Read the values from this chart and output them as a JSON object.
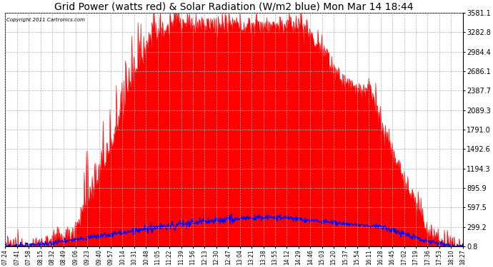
{
  "title": "Grid Power (watts red) & Solar Radiation (W/m2 blue) Mon Mar 14 18:44",
  "copyright": "Copyright 2011 Cartronics.com",
  "yticks": [
    0.8,
    299.2,
    597.5,
    895.9,
    1194.3,
    1492.6,
    1791.0,
    2089.3,
    2387.7,
    2686.1,
    2984.4,
    3282.8,
    3581.1
  ],
  "xtick_labels": [
    "07:24",
    "07:41",
    "07:58",
    "08:15",
    "08:32",
    "08:49",
    "09:06",
    "09:23",
    "09:40",
    "09:57",
    "10:14",
    "10:31",
    "10:48",
    "11:05",
    "11:22",
    "11:39",
    "11:56",
    "12:13",
    "12:30",
    "12:47",
    "13:04",
    "13:21",
    "13:38",
    "13:55",
    "14:12",
    "14:29",
    "14:46",
    "15:03",
    "15:20",
    "15:37",
    "15:54",
    "16:11",
    "16:28",
    "16:45",
    "17:02",
    "17:19",
    "17:36",
    "17:53",
    "18:10",
    "18:27"
  ],
  "red_color": "#ff0000",
  "blue_color": "#0000ff",
  "background_color": "#ffffff",
  "grid_color": "#b0b0b0",
  "title_fontsize": 10,
  "ymax": 3581.1,
  "ymin": 0.8,
  "figwidth": 6.9,
  "figheight": 3.75,
  "dpi": 100
}
